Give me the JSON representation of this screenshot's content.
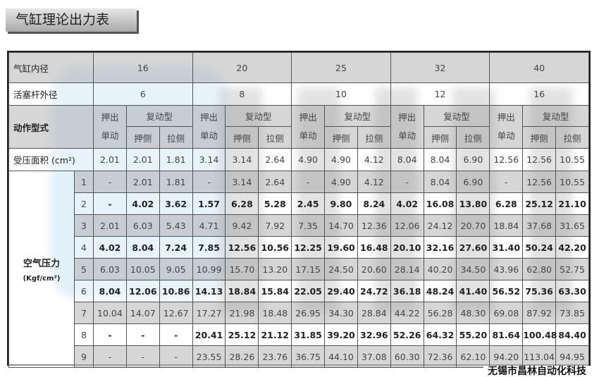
{
  "title": "气缸理论出力表",
  "watermark_text": "无锡市昌林自动化科技",
  "labels": {
    "bore": "气缸内径",
    "rod": "活塞杆外径",
    "action": "动作型式",
    "area": "受压面积 (cm²)",
    "pressure": "空气压力",
    "pressure_unit": "(Kgf/cm²)",
    "single": "押出\n单动",
    "double": "复动型",
    "push": "押侧",
    "pull": "拉侧"
  },
  "bores": [
    "16",
    "20",
    "25",
    "32",
    "40"
  ],
  "rods": [
    "6",
    "8",
    "10",
    "12",
    "16"
  ],
  "area": [
    "2.01",
    "2.01",
    "1.81",
    "3.14",
    "3.14",
    "2.64",
    "4.90",
    "4.90",
    "4.12",
    "8.04",
    "8.04",
    "6.90",
    "12.56",
    "12.56",
    "10.55"
  ],
  "rows": [
    {
      "p": "1",
      "v": [
        "-",
        "2.01",
        "1.81",
        "-",
        "3.14",
        "2.64",
        "-",
        "4.90",
        "4.12",
        "-",
        "8.04",
        "6.90",
        "-",
        "12.56",
        "10.55"
      ]
    },
    {
      "p": "2",
      "v": [
        "-",
        "4.02",
        "3.62",
        "1.57",
        "6.28",
        "5.28",
        "2.45",
        "9.80",
        "8.24",
        "4.02",
        "16.08",
        "13.80",
        "6.28",
        "25.12",
        "21.10"
      ]
    },
    {
      "p": "3",
      "v": [
        "2.01",
        "6.03",
        "5.43",
        "4.71",
        "9.42",
        "7.92",
        "7.35",
        "14.70",
        "12.36",
        "12.06",
        "24.12",
        "20.70",
        "18.84",
        "37.68",
        "31.65"
      ]
    },
    {
      "p": "4",
      "v": [
        "4.02",
        "8.04",
        "7.24",
        "7.85",
        "12.56",
        "10.56",
        "12.25",
        "19.60",
        "16.48",
        "20.10",
        "32.16",
        "27.60",
        "31.40",
        "50.24",
        "42.20"
      ]
    },
    {
      "p": "5",
      "v": [
        "6.03",
        "10.05",
        "9.05",
        "10.99",
        "15.70",
        "13.20",
        "17.15",
        "24.50",
        "20.60",
        "28.14",
        "40.20",
        "34.50",
        "43.96",
        "62.80",
        "52.75"
      ]
    },
    {
      "p": "6",
      "v": [
        "8.04",
        "12.06",
        "10.86",
        "14.13",
        "18.84",
        "15.84",
        "22.05",
        "29.40",
        "24.72",
        "36.18",
        "48.24",
        "41.40",
        "56.52",
        "75.36",
        "63.30"
      ]
    },
    {
      "p": "7",
      "v": [
        "10.04",
        "14.07",
        "12.67",
        "17.27",
        "21.98",
        "18.48",
        "26.95",
        "34.30",
        "28.84",
        "44.22",
        "56.28",
        "48.30",
        "69.08",
        "87.92",
        "73.85"
      ]
    },
    {
      "p": "8",
      "v": [
        "-",
        "-",
        "-",
        "20.41",
        "25.12",
        "21.12",
        "31.85",
        "39.20",
        "32.96",
        "52.26",
        "64.32",
        "55.20",
        "81.64",
        "100.48",
        "84.40"
      ]
    },
    {
      "p": "9",
      "v": [
        "-",
        "-",
        "-",
        "23.55",
        "28.26",
        "23.76",
        "36.75",
        "44.10",
        "37.08",
        "60.30",
        "72.36",
        "62.10",
        "94.20",
        "113.04",
        "94.95"
      ]
    }
  ]
}
